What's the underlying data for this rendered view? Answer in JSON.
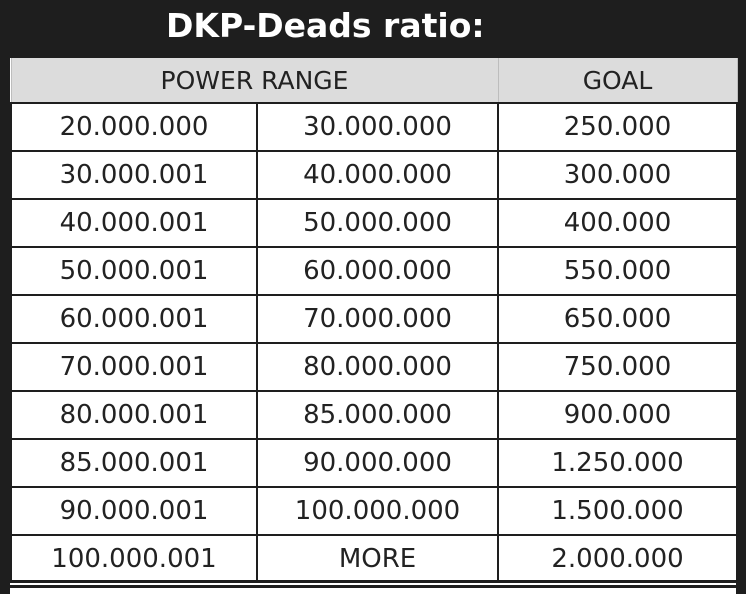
{
  "title": "DKP-Deads ratio:",
  "headers": {
    "power_range": "POWER RANGE",
    "goal": "GOAL"
  },
  "rows": [
    {
      "from": "20.000.000",
      "to": "30.000.000",
      "goal": "250.000"
    },
    {
      "from": "30.000.001",
      "to": "40.000.000",
      "goal": "300.000"
    },
    {
      "from": "40.000.001",
      "to": "50.000.000",
      "goal": "400.000"
    },
    {
      "from": "50.000.001",
      "to": "60.000.000",
      "goal": "550.000"
    },
    {
      "from": "60.000.001",
      "to": "70.000.000",
      "goal": "650.000"
    },
    {
      "from": "70.000.001",
      "to": "80.000.000",
      "goal": "750.000"
    },
    {
      "from": "80.000.001",
      "to": "85.000.000",
      "goal": "900.000"
    },
    {
      "from": "85.000.001",
      "to": "90.000.000",
      "goal": "1.250.000"
    },
    {
      "from": "90.000.001",
      "to": "100.000.000",
      "goal": "1.500.000"
    },
    {
      "from": "100.000.001",
      "to": "MORE",
      "goal": "2.000.000"
    }
  ],
  "colors": {
    "title_bar": "#1e1e1e",
    "title_text": "#ffffff",
    "header_fill": "#dcdcdc",
    "cell_fill": "#ffffff",
    "grid_line": "#1e1e1e"
  }
}
